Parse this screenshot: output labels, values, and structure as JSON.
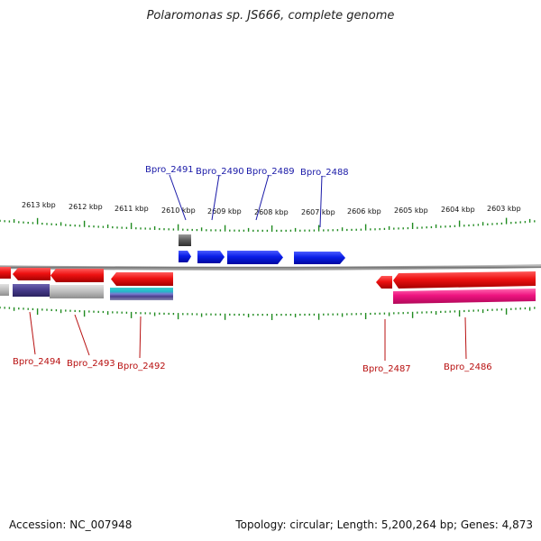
{
  "title": "Polaromonas sp. JS666, complete genome",
  "footer": {
    "accession": "Accession: NC_007948",
    "topology": "Topology: circular; Length: 5,200,264 bp; Genes: 4,873"
  },
  "colors": {
    "backbone": "#8c8c8c",
    "tick": "#1f8a1f",
    "forward_gene": "#0b1ee8",
    "reverse_gene": "#e8101a",
    "forward_label": "#1a1aa8",
    "reverse_label": "#b81010",
    "magenta_gene": "#e8137a",
    "pseudo_gene": "#555555",
    "navy_gene": "#4a3f8c",
    "teal_gene": "#2bbbbb",
    "gray_gene": "#bdbdbd"
  },
  "scale": {
    "unit": "kbp",
    "labels": [
      "2613 kbp",
      "2612 kbp",
      "2611 kbp",
      "2610 kbp",
      "2609 kbp",
      "2608 kbp",
      "2607 kbp",
      "2606 kbp",
      "2605 kbp",
      "2604 kbp",
      "2603 kbp"
    ]
  },
  "genes": {
    "forward_labels": [
      "Bpro_2491",
      "Bpro_2490",
      "Bpro_2489",
      "Bpro_2488"
    ],
    "reverse_labels": [
      "Bpro_2494",
      "Bpro_2493",
      "Bpro_2492",
      "Bpro_2487",
      "Bpro_2486"
    ]
  }
}
